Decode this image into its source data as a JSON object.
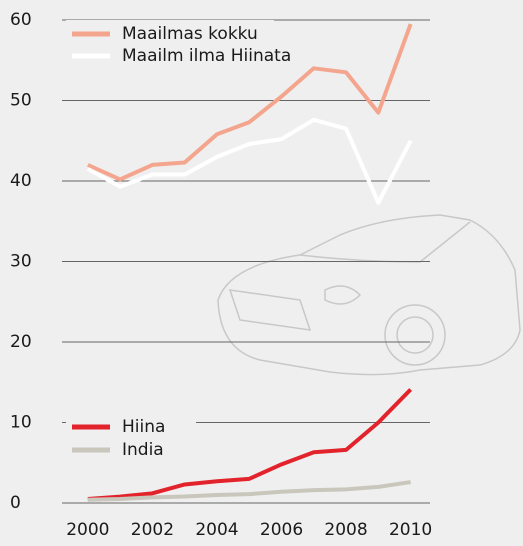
{
  "chart_data": {
    "type": "line",
    "x": [
      2000,
      2001,
      2002,
      2003,
      2004,
      2005,
      2006,
      2007,
      2008,
      2009,
      2010
    ],
    "series": [
      {
        "name": "Maailmas kokku",
        "color": "#f4a58e",
        "values": [
          42,
          40.2,
          42,
          42.3,
          45.8,
          47.3,
          50.5,
          54,
          53.5,
          48.5,
          59.5
        ]
      },
      {
        "name": "Maailm ilma Hiinata",
        "color": "#ffffff",
        "values": [
          41.5,
          39.3,
          40.8,
          40.8,
          43,
          44.6,
          45.2,
          47.6,
          46.5,
          37.3,
          45
        ]
      },
      {
        "name": "Hiina",
        "color": "#e3232b",
        "values": [
          0.5,
          0.8,
          1.2,
          2.3,
          2.7,
          3,
          4.8,
          6.3,
          6.6,
          10,
          14.1
        ]
      },
      {
        "name": "India",
        "color": "#c9c6bc",
        "values": [
          0.4,
          0.5,
          0.7,
          0.8,
          1,
          1.1,
          1.4,
          1.6,
          1.7,
          2,
          2.6
        ]
      }
    ],
    "xlim": [
      1999.2,
      2010.6
    ],
    "xticks": [
      2000,
      2002,
      2004,
      2006,
      2008,
      2010
    ],
    "ylim": [
      0,
      60
    ],
    "yticks": [
      0,
      10,
      20,
      30,
      40,
      50,
      60
    ],
    "grid": true
  }
}
